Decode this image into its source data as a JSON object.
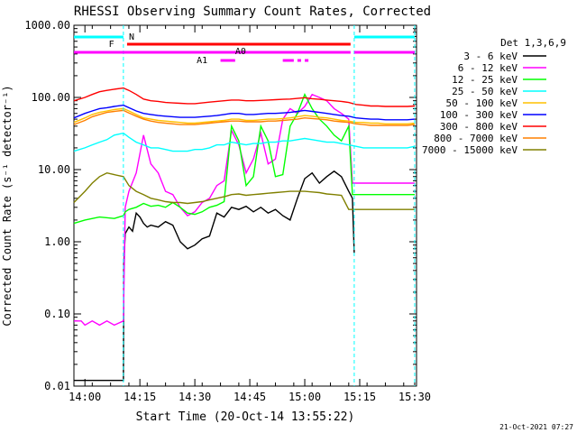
{
  "chart_data": {
    "type": "line",
    "title": "RHESSI Observing Summary Count Rates, Corrected",
    "xlabel": "Start Time (20-Oct-14 13:55:22)",
    "ylabel": "Corrected Count Rate (s⁻¹ detector⁻¹)",
    "yscale": "log",
    "ylim": [
      0.01,
      1000
    ],
    "xlim_minutes": [
      -3.0,
      35.5
    ],
    "x_ticks": [
      {
        "label": "14:00",
        "v": 0
      },
      {
        "label": "14:15",
        "v": 15
      },
      {
        "label": "14:30",
        "v": 30
      },
      {
        "label": "14:45",
        "v": 45
      },
      {
        "label": "15:00",
        "v": 60
      },
      {
        "label": "15:15",
        "v": 75
      },
      {
        "label": "15:30",
        "v": 90
      }
    ],
    "y_ticks": [
      {
        "label": "1000.00",
        "v": 1000
      },
      {
        "label": "100.00",
        "v": 100
      },
      {
        "label": "10.00",
        "v": 10
      },
      {
        "label": "1.00",
        "v": 1
      },
      {
        "label": "0.10",
        "v": 0.1
      },
      {
        "label": "0.01",
        "v": 0.01
      }
    ],
    "legend_title": "Det 1,3,6,9",
    "legend_position": "right",
    "grid": false,
    "time_axis_origin": "14:00",
    "series": [
      {
        "name": "3 - 6 keV",
        "color": "#000000",
        "x": [
          -3,
          10.5,
          10.6,
          11,
          12,
          13,
          14,
          15,
          16,
          17,
          18,
          20,
          22,
          24,
          26,
          28,
          30,
          32,
          34,
          36,
          38,
          40,
          42,
          44,
          46,
          48,
          50,
          52,
          54,
          56,
          58,
          60,
          62,
          64,
          66,
          68,
          70,
          72,
          73,
          73.5
        ],
        "y": [
          0.012,
          0.012,
          0.5,
          1.3,
          1.6,
          1.4,
          2.5,
          2.2,
          1.8,
          1.6,
          1.7,
          1.6,
          1.9,
          1.7,
          1.0,
          0.8,
          0.9,
          1.1,
          1.2,
          2.5,
          2.2,
          3.0,
          2.8,
          3.1,
          2.6,
          3.0,
          2.5,
          2.8,
          2.3,
          2.0,
          4.0,
          7.5,
          9.0,
          6.5,
          8.0,
          9.5,
          8.0,
          5.0,
          4.0,
          0.7
        ]
      },
      {
        "name": "6 - 12 keV",
        "color": "#ff00ff",
        "x": [
          -3,
          -1,
          0,
          2,
          4,
          6,
          8,
          10.5,
          11,
          12,
          14,
          16,
          18,
          20,
          22,
          24,
          26,
          28,
          30,
          32,
          34,
          36,
          38,
          40,
          42,
          44,
          46,
          48,
          50,
          52,
          54,
          56,
          58,
          60,
          62,
          64,
          66,
          68,
          70,
          72,
          73,
          74,
          76,
          78,
          80,
          82,
          84,
          86,
          88,
          90
        ],
        "y": [
          0.08,
          0.08,
          0.07,
          0.08,
          0.07,
          0.08,
          0.07,
          0.08,
          3.0,
          5.0,
          9.0,
          30,
          12,
          9.0,
          5.0,
          4.5,
          3.0,
          2.3,
          2.6,
          3.5,
          4.0,
          6.0,
          7.0,
          35,
          22,
          9.0,
          14,
          32,
          12,
          14,
          50,
          70,
          60,
          75,
          110,
          100,
          90,
          70,
          60,
          50,
          6.5,
          6.5,
          6.5,
          6.5,
          6.5,
          6.5,
          6.5,
          6.5,
          6.5,
          6.5
        ]
      },
      {
        "name": "12 - 25 keV",
        "color": "#00ff00",
        "x": [
          -3,
          0,
          4,
          8,
          10.5,
          11,
          12,
          14,
          16,
          18,
          20,
          22,
          24,
          26,
          28,
          30,
          32,
          34,
          36,
          38,
          40,
          42,
          44,
          46,
          48,
          50,
          52,
          54,
          56,
          58,
          60,
          62,
          64,
          66,
          68,
          70,
          72,
          73,
          74,
          76,
          78,
          80,
          82,
          84,
          86,
          88,
          90
        ],
        "y": [
          1.8,
          2.0,
          2.2,
          2.1,
          2.3,
          2.6,
          2.8,
          3.0,
          3.4,
          3.1,
          3.2,
          3.0,
          3.5,
          3.0,
          2.5,
          2.4,
          2.6,
          3.0,
          3.2,
          3.6,
          40,
          25,
          6.0,
          8.0,
          40,
          25,
          8.0,
          8.5,
          40,
          60,
          110,
          70,
          50,
          40,
          30,
          25,
          40,
          4.5,
          4.5,
          4.5,
          4.5,
          4.5,
          4.5,
          4.5,
          4.5,
          4.5,
          4.5
        ]
      },
      {
        "name": "25 - 50 keV",
        "color": "#00ffff",
        "x": [
          -3,
          0,
          2,
          4,
          6,
          8,
          10.5,
          12,
          14,
          16,
          18,
          20,
          22,
          24,
          26,
          28,
          30,
          32,
          34,
          36,
          38,
          40,
          42,
          44,
          46,
          48,
          50,
          52,
          54,
          56,
          58,
          60,
          62,
          64,
          66,
          68,
          70,
          72,
          74,
          76,
          78,
          80,
          82,
          84,
          86,
          88,
          90
        ],
        "y": [
          18,
          20,
          22,
          24,
          26,
          30,
          32,
          28,
          24,
          22,
          20,
          20,
          19,
          18,
          18,
          18,
          19,
          19,
          20,
          22,
          22,
          24,
          23,
          22,
          23,
          23,
          24,
          24,
          25,
          25,
          26,
          27,
          26,
          25,
          24,
          24,
          23,
          22,
          21,
          20,
          20,
          20,
          20,
          20,
          20,
          20,
          21
        ]
      },
      {
        "name": "50 - 100 keV",
        "color": "#ffc000",
        "x": [
          -3,
          0,
          2,
          4,
          6,
          8,
          10.5,
          12,
          14,
          16,
          18,
          20,
          22,
          24,
          26,
          28,
          30,
          32,
          34,
          36,
          38,
          40,
          42,
          44,
          46,
          48,
          50,
          52,
          54,
          56,
          58,
          60,
          62,
          64,
          66,
          68,
          70,
          72,
          74,
          76,
          78,
          80,
          82,
          84,
          86,
          88,
          90
        ],
        "y": [
          45,
          52,
          58,
          62,
          65,
          68,
          70,
          65,
          58,
          52,
          50,
          48,
          47,
          46,
          45,
          44,
          44,
          45,
          46,
          47,
          48,
          50,
          50,
          48,
          48,
          49,
          50,
          50,
          51,
          52,
          54,
          56,
          55,
          53,
          52,
          50,
          48,
          47,
          45,
          45,
          44,
          44,
          43,
          43,
          43,
          43,
          44
        ]
      },
      {
        "name": "100 - 300 keV",
        "color": "#0000ff",
        "x": [
          -3,
          0,
          2,
          4,
          6,
          8,
          10.5,
          12,
          14,
          16,
          18,
          20,
          22,
          24,
          26,
          28,
          30,
          32,
          34,
          36,
          38,
          40,
          42,
          44,
          46,
          48,
          50,
          52,
          54,
          56,
          58,
          60,
          62,
          64,
          66,
          68,
          70,
          72,
          74,
          76,
          78,
          80,
          82,
          84,
          86,
          88,
          90
        ],
        "y": [
          52,
          60,
          65,
          70,
          72,
          75,
          78,
          72,
          65,
          60,
          58,
          56,
          55,
          54,
          53,
          53,
          53,
          54,
          55,
          56,
          58,
          60,
          60,
          58,
          58,
          59,
          60,
          60,
          61,
          62,
          64,
          66,
          64,
          62,
          60,
          58,
          56,
          55,
          52,
          51,
          50,
          50,
          49,
          49,
          49,
          49,
          50
        ]
      },
      {
        "name": "300 - 800 keV",
        "color": "#ff0000",
        "x": [
          -3,
          0,
          2,
          4,
          6,
          8,
          10.5,
          12,
          14,
          16,
          18,
          20,
          22,
          24,
          26,
          28,
          30,
          32,
          34,
          36,
          38,
          40,
          42,
          44,
          46,
          48,
          50,
          52,
          54,
          56,
          58,
          60,
          62,
          64,
          66,
          68,
          70,
          72,
          74,
          76,
          78,
          80,
          82,
          84,
          86,
          88,
          90
        ],
        "y": [
          90,
          100,
          110,
          120,
          125,
          130,
          135,
          125,
          110,
          95,
          90,
          88,
          85,
          84,
          83,
          82,
          82,
          84,
          86,
          88,
          90,
          92,
          92,
          90,
          90,
          91,
          92,
          93,
          94,
          95,
          97,
          99,
          96,
          94,
          92,
          90,
          88,
          85,
          80,
          78,
          76,
          76,
          75,
          75,
          75,
          75,
          76
        ]
      },
      {
        "name": "800 - 7000 keV",
        "color": "#ff8000",
        "x": [
          -3,
          0,
          2,
          4,
          6,
          8,
          10.5,
          12,
          14,
          16,
          18,
          20,
          22,
          24,
          26,
          28,
          30,
          32,
          34,
          36,
          38,
          40,
          42,
          44,
          46,
          48,
          50,
          52,
          54,
          56,
          58,
          60,
          62,
          64,
          66,
          68,
          70,
          72,
          74,
          76,
          78,
          80,
          82,
          84,
          86,
          88,
          90
        ],
        "y": [
          42,
          48,
          54,
          58,
          62,
          64,
          66,
          61,
          55,
          50,
          47,
          45,
          44,
          43,
          42,
          42,
          42,
          43,
          44,
          45,
          46,
          47,
          47,
          46,
          46,
          46,
          47,
          47,
          48,
          49,
          50,
          52,
          51,
          50,
          49,
          47,
          46,
          45,
          43,
          42,
          41,
          41,
          41,
          41,
          41,
          41,
          42
        ]
      },
      {
        "name": "7000 - 15000 keV",
        "color": "#808000",
        "x": [
          -3,
          0,
          2,
          4,
          6,
          8,
          10.5,
          12,
          14,
          16,
          18,
          20,
          22,
          24,
          26,
          28,
          30,
          32,
          34,
          36,
          38,
          40,
          42,
          44,
          46,
          48,
          50,
          52,
          54,
          56,
          58,
          60,
          62,
          64,
          66,
          68,
          70,
          72,
          74,
          76,
          78,
          80,
          82,
          84,
          86,
          88,
          90
        ],
        "y": [
          3.5,
          5.0,
          6.5,
          8.0,
          9.0,
          8.5,
          8.0,
          6.0,
          5.0,
          4.5,
          4.0,
          3.8,
          3.6,
          3.5,
          3.5,
          3.4,
          3.5,
          3.6,
          3.8,
          4.0,
          4.2,
          4.5,
          4.6,
          4.4,
          4.5,
          4.6,
          4.7,
          4.8,
          4.9,
          5.0,
          5.0,
          5.0,
          4.9,
          4.8,
          4.6,
          4.5,
          4.4,
          2.8,
          2.8,
          2.8,
          2.8,
          2.8,
          2.8,
          2.8,
          2.8,
          2.8,
          2.8
        ]
      }
    ],
    "annotations": {
      "flag_labels": [
        "N",
        "F",
        "A0",
        "A1"
      ],
      "night_bar": {
        "label": "N",
        "color": "#00ffff",
        "segments": [
          [
            -3,
            10.5
          ],
          [
            73.5,
            90
          ]
        ]
      },
      "flare_bar": {
        "label": "F",
        "color": "#ff0000",
        "segments": [
          [
            11.5,
            72.5
          ]
        ]
      },
      "attenuator_bar": {
        "color": "#ff00ff",
        "segments": [
          [
            -3,
            72.5
          ],
          [
            73.5,
            90
          ]
        ]
      },
      "a0_label": "A0",
      "a1_label": "A1",
      "a1_segments": [
        [
          37,
          41
        ],
        [
          54,
          57
        ],
        [
          58,
          59
        ],
        [
          60,
          61
        ]
      ],
      "vlines_cyan": [
        10.5,
        73.5,
        90
      ]
    },
    "footer_date": "21-Oct-2021 07:27"
  }
}
